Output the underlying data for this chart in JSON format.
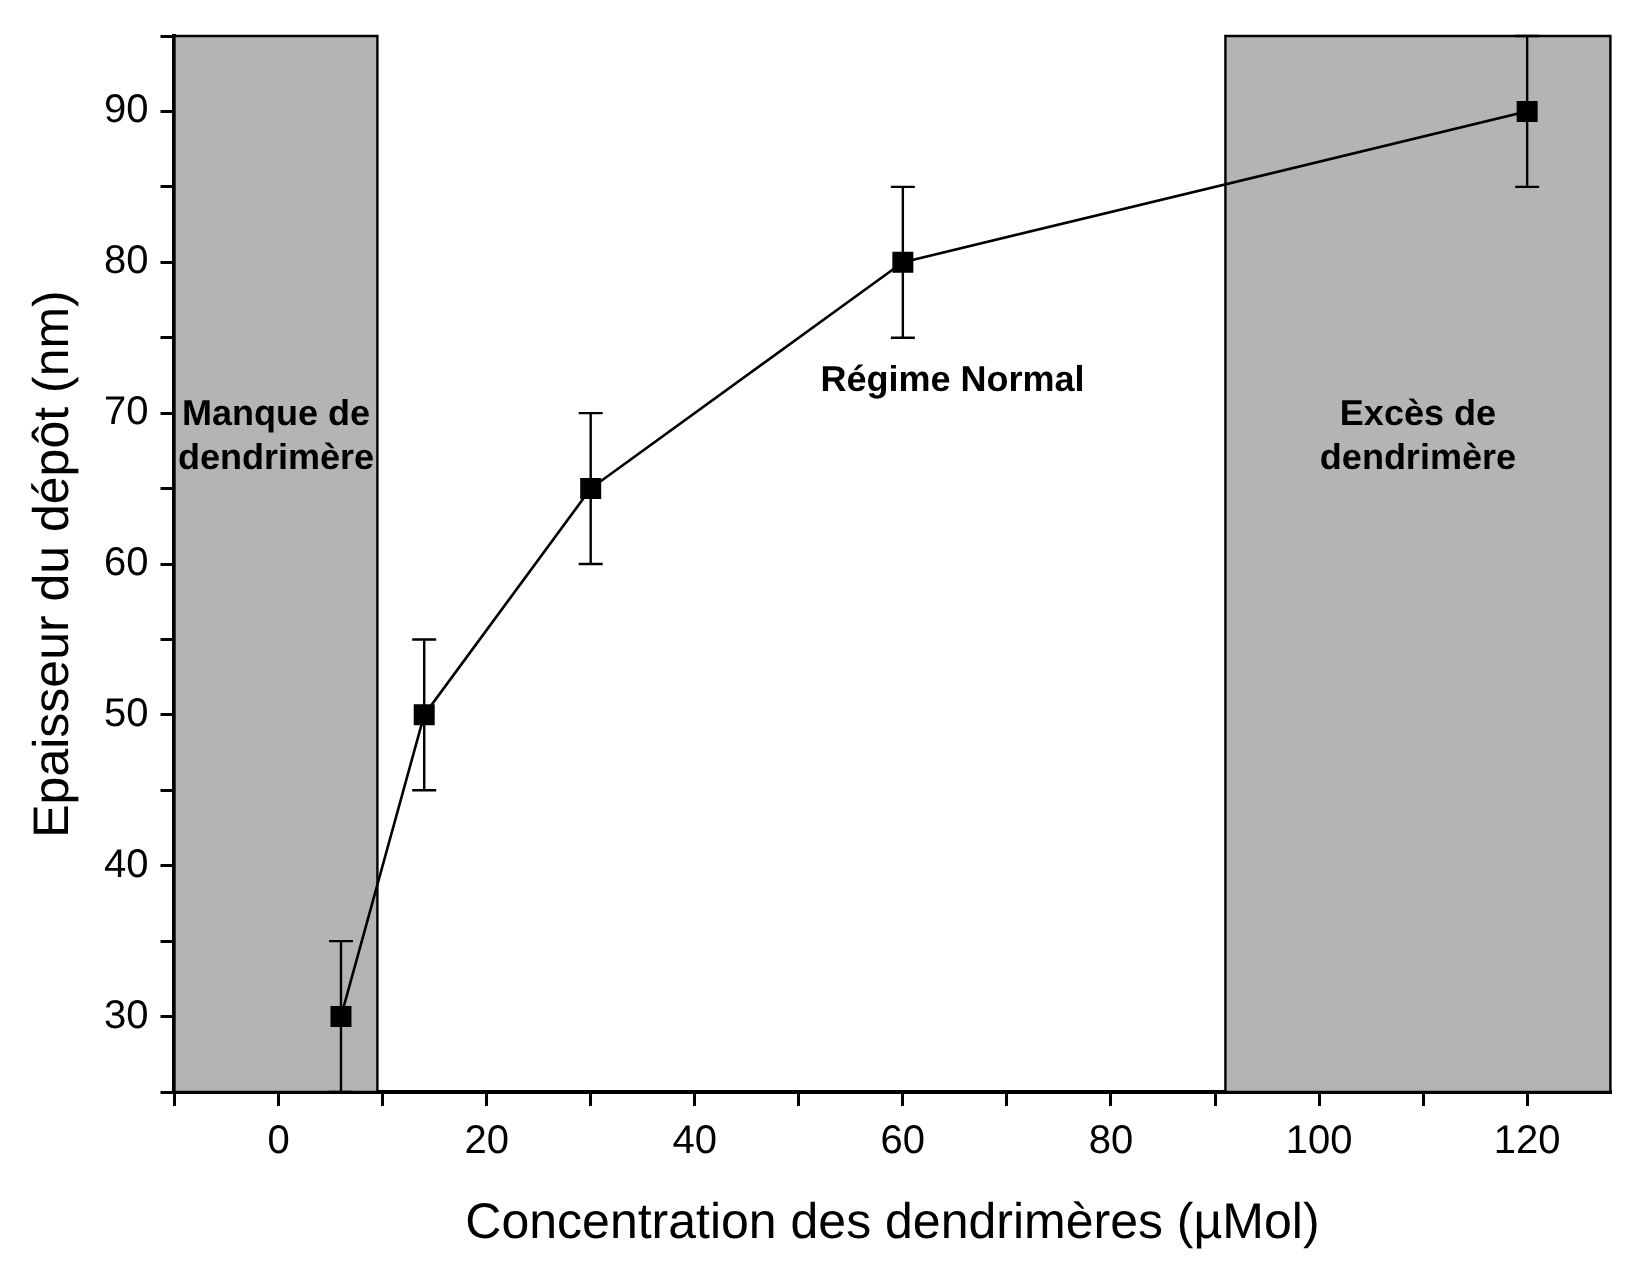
{
  "chart_data": {
    "type": "line",
    "xlabel": "Concentration des dendrimères (µMol)",
    "ylabel": "Epaisseur du dépôt (nm)",
    "x": [
      6,
      14,
      30,
      60,
      120
    ],
    "series": [
      {
        "color": "#000000",
        "values": [
          30,
          50,
          65,
          80,
          90
        ],
        "errors": [
          5,
          5,
          5,
          5,
          5
        ]
      }
    ],
    "xlim": [
      -10,
      128
    ],
    "ylim": [
      25,
      95
    ],
    "xticks": [
      {
        "value": -10,
        "label": null
      },
      0,
      {
        "value": 10,
        "label": null
      },
      20,
      {
        "value": 30,
        "label": null
      },
      40,
      {
        "value": 50,
        "label": null
      },
      60,
      {
        "value": 70,
        "label": null
      },
      80,
      {
        "value": 90,
        "label": null
      },
      100,
      {
        "value": 110,
        "label": null
      },
      120
    ],
    "yticks": [
      {
        "value": 25,
        "label": null
      },
      30,
      {
        "value": 35,
        "label": null
      },
      40,
      {
        "value": 45,
        "label": null
      },
      50,
      {
        "value": 55,
        "label": null
      },
      60,
      {
        "value": 65,
        "label": null
      },
      70,
      {
        "value": 75,
        "label": null
      },
      80,
      {
        "value": 85,
        "label": null
      },
      90,
      {
        "value": 95,
        "label": null
      }
    ],
    "bands": [
      {
        "axis": "x",
        "from": -10,
        "to": 9.5,
        "label": "Manque de dendrimère",
        "color": "#b4b4b4"
      },
      {
        "axis": "x",
        "from": 91,
        "to": 128,
        "label": "Excès de dendrimère",
        "color": "#b4b4b4"
      }
    ],
    "annotations": [
      "Régime Normal"
    ],
    "marker": "square",
    "line_style": "solid",
    "grid": false,
    "legend": false
  }
}
